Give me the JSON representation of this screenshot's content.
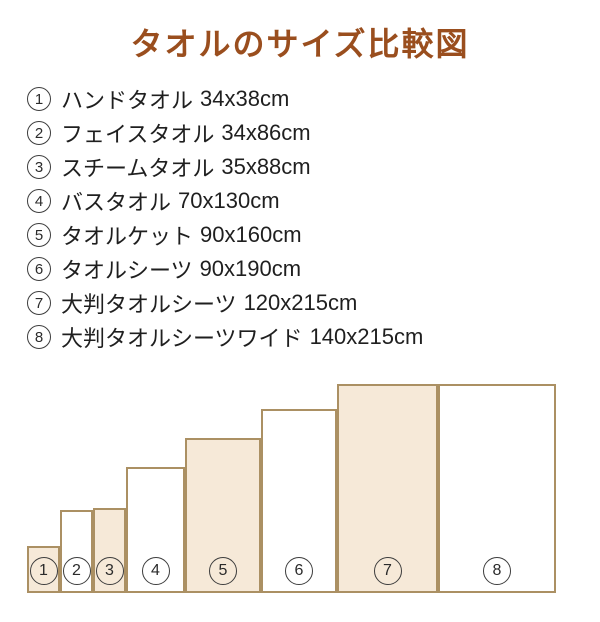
{
  "title": {
    "text": "タオルのサイズ比較図"
  },
  "list": {
    "items": [
      {
        "number": "1",
        "label": "ハンドタオル",
        "size": "34x38cm"
      },
      {
        "number": "2",
        "label": "フェイスタオル",
        "size": "34x86cm"
      },
      {
        "number": "3",
        "label": "スチームタオル",
        "size": "35x88cm"
      },
      {
        "number": "4",
        "label": "バスタオル",
        "size": "70x130cm"
      },
      {
        "number": "5",
        "label": "タオルケット",
        "size": "90x160cm"
      },
      {
        "number": "6",
        "label": "タオルシーツ",
        "size": "90x190cm"
      },
      {
        "number": "7",
        "label": "大判タオルシーツ",
        "size": "120x215cm"
      },
      {
        "number": "8",
        "label": "大判タオルシーツワイド",
        "size": "140x215cm"
      }
    ]
  },
  "chart_data": {
    "type": "bar",
    "title": "タオルのサイズ比較図",
    "description": "Bottom-aligned adjacent rectangles whose width and height are proportional to each towel's dimensions in cm; fills alternate beige and white; each rectangle carries its circled number near the bottom",
    "units": "cm",
    "items": [
      {
        "number": "1",
        "name": "ハンドタオル",
        "width_cm": 34,
        "height_cm": 38,
        "fill": "beige"
      },
      {
        "number": "2",
        "name": "フェイスタオル",
        "width_cm": 34,
        "height_cm": 86,
        "fill": "white"
      },
      {
        "number": "3",
        "name": "スチームタオル",
        "width_cm": 35,
        "height_cm": 88,
        "fill": "beige"
      },
      {
        "number": "4",
        "name": "バスタオル",
        "width_cm": 70,
        "height_cm": 130,
        "fill": "white"
      },
      {
        "number": "5",
        "name": "タオルケット",
        "width_cm": 90,
        "height_cm": 160,
        "fill": "beige"
      },
      {
        "number": "6",
        "name": "タオルシーツ",
        "width_cm": 90,
        "height_cm": 190,
        "fill": "white"
      },
      {
        "number": "7",
        "name": "大判タオルシーツ",
        "width_cm": 120,
        "height_cm": 215,
        "fill": "beige"
      },
      {
        "number": "8",
        "name": "大判タオルシーツワイド",
        "width_cm": 140,
        "height_cm": 215,
        "fill": "white"
      }
    ]
  },
  "colors": {
    "title": "#9a4e1e",
    "text": "#1f1f1f",
    "bar_border": "#ab9063",
    "bar_fill_beige": "#f6e9d8",
    "bar_fill_white": "#ffffff",
    "circle_border": "#3d3d3d"
  }
}
